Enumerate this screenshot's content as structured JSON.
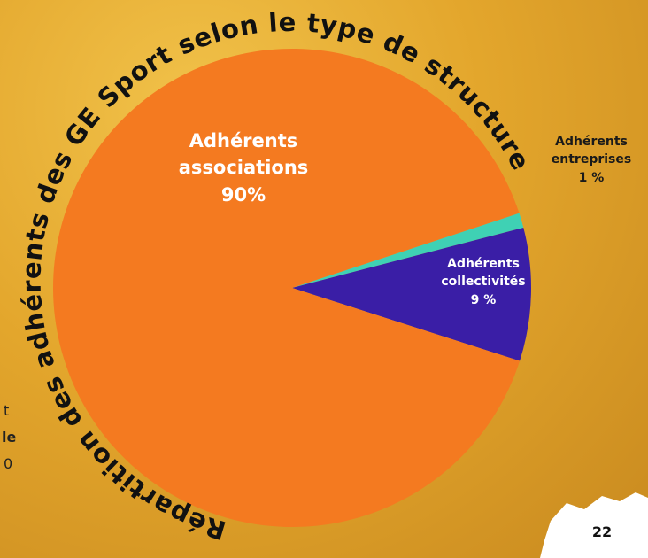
{
  "chart_data": {
    "type": "pie",
    "title": "Répartition des adhérents des GE Sport selon le type de structure",
    "categories": [
      "Adhérents entreprises",
      "Adhérents collectivités",
      "Adhérents associations"
    ],
    "values": [
      1,
      9,
      90
    ],
    "value_labels": [
      "1 %",
      "9 %",
      "90%"
    ],
    "colors": [
      "#3fd1b4",
      "#3a1ea6",
      "#f47a20"
    ]
  },
  "page_fragments": [
    "t",
    "le",
    "0"
  ],
  "page_number": "22"
}
